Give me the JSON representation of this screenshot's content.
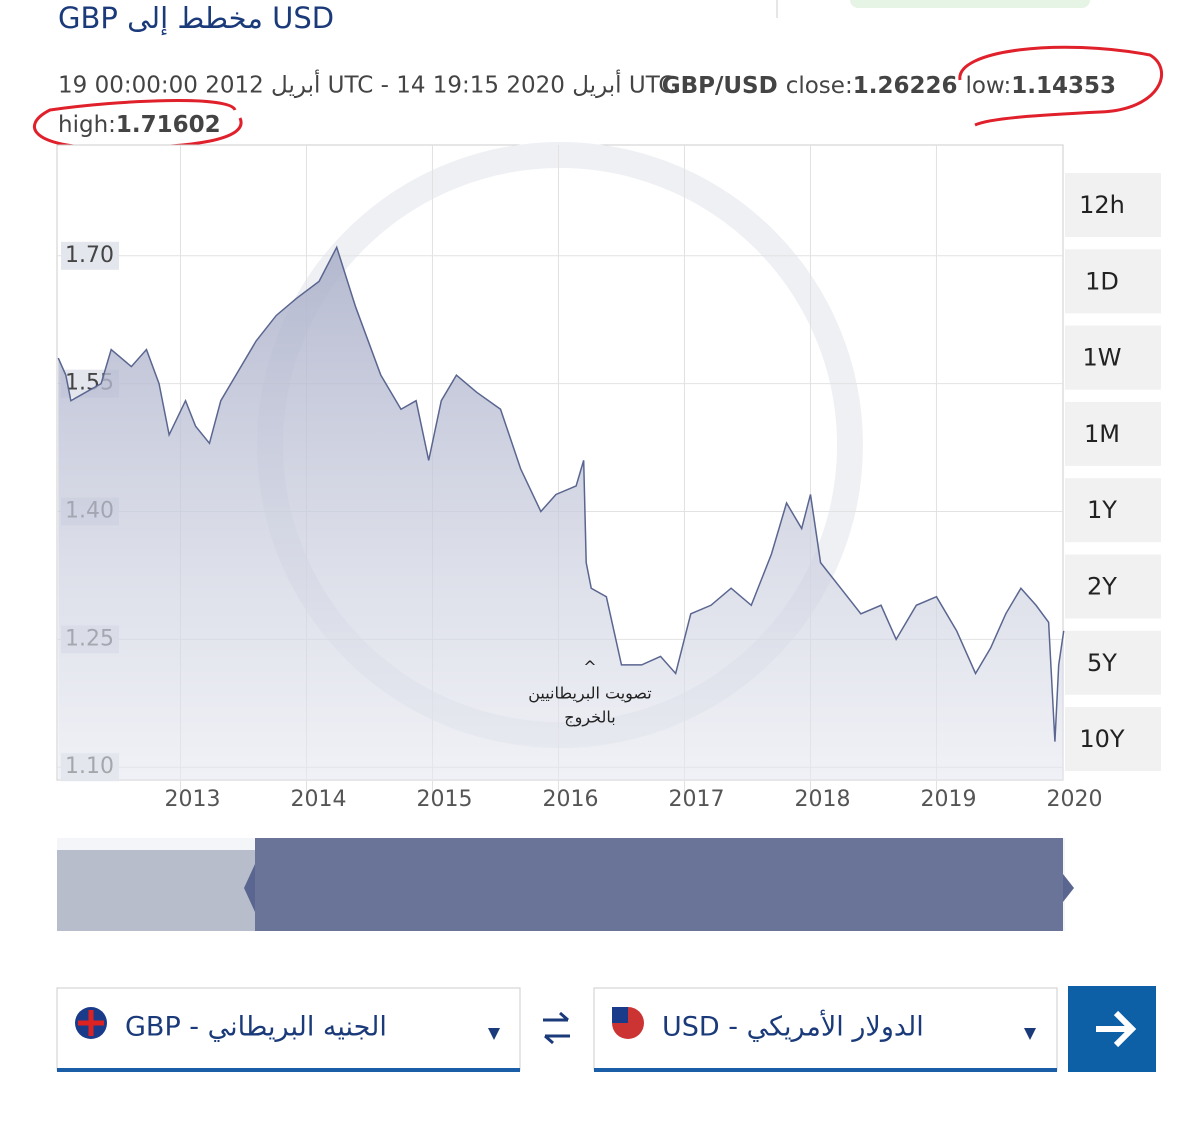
{
  "header": {
    "title": "GBP مخطط إلى USD",
    "range": "19 أبريل 2012 00:00:00 UTC - 14 أبريل 2020 19:15 UTC",
    "pair": "GBP/USD",
    "close_label": "close:",
    "close": "1.26226",
    "low_label": "low:",
    "low": "1.14353",
    "high_label": "high:",
    "high": "1.71602"
  },
  "chart_data": {
    "type": "area",
    "color": "#5a6690",
    "x": [
      2012.03,
      2012.09,
      2012.13,
      2012.37,
      2012.45,
      2012.61,
      2012.73,
      2012.83,
      2012.91,
      2013.04,
      2013.12,
      2013.23,
      2013.32,
      2013.44,
      2013.6,
      2013.76,
      2013.92,
      2014.1,
      2014.24,
      2014.39,
      2014.59,
      2014.75,
      2014.87,
      2014.97,
      2015.07,
      2015.19,
      2015.35,
      2015.54,
      2015.7,
      2015.86,
      2015.98,
      2016.14,
      2016.2,
      2016.22,
      2016.26,
      2016.38,
      2016.5,
      2016.66,
      2016.81,
      2016.93,
      2017.05,
      2017.21,
      2017.37,
      2017.53,
      2017.69,
      2017.81,
      2017.93,
      2018.0,
      2018.08,
      2018.24,
      2018.4,
      2018.56,
      2018.68,
      2018.84,
      2019.0,
      2019.16,
      2019.31,
      2019.43,
      2019.55,
      2019.67,
      2019.79,
      2019.89,
      2019.94,
      2019.97,
      2020.01
    ],
    "series": [
      {
        "name": "GBP/USD",
        "color": "#5a6690",
        "values": [
          1.58,
          1.56,
          1.53,
          1.55,
          1.59,
          1.57,
          1.59,
          1.55,
          1.49,
          1.53,
          1.5,
          1.48,
          1.53,
          1.56,
          1.6,
          1.63,
          1.65,
          1.67,
          1.71,
          1.64,
          1.56,
          1.52,
          1.53,
          1.46,
          1.53,
          1.56,
          1.54,
          1.52,
          1.45,
          1.4,
          1.42,
          1.43,
          1.46,
          1.34,
          1.31,
          1.3,
          1.22,
          1.22,
          1.23,
          1.21,
          1.28,
          1.29,
          1.31,
          1.29,
          1.35,
          1.41,
          1.38,
          1.42,
          1.34,
          1.31,
          1.28,
          1.29,
          1.25,
          1.29,
          1.3,
          1.26,
          1.21,
          1.24,
          1.28,
          1.31,
          1.29,
          1.27,
          1.13,
          1.22,
          1.26
        ]
      }
    ],
    "xlim": [
      2012.02,
      2020.02
    ],
    "xticks": [
      2013,
      2014,
      2015,
      2016,
      2017,
      2018,
      2019,
      2020
    ],
    "ylim": [
      1.085,
      1.83
    ],
    "yticks": [
      {
        "value": 1.7,
        "label": "1.70"
      },
      1.55,
      {
        "value": 1.4,
        "label": "1.40"
      },
      1.25,
      {
        "value": 1.1,
        "label": "1.10"
      }
    ],
    "grid": true,
    "annotations": [
      {
        "text": "^",
        "x": 2016.25
      },
      {
        "text": "تصويت البريطانيين",
        "x": 2016.25
      },
      {
        "text": "بالخروج",
        "x": 2016.25
      }
    ]
  },
  "ranges": [
    "12h",
    "1D",
    "1W",
    "1M",
    "1Y",
    "2Y",
    "5Y",
    "10Y"
  ],
  "converter": {
    "from": "GBP - الجنيه البريطاني",
    "to": "USD - الدولار الأمريكي"
  }
}
